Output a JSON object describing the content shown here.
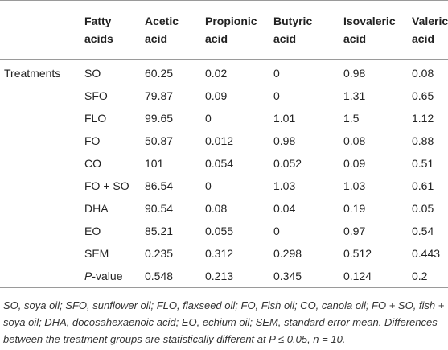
{
  "table": {
    "header": [
      "Fatty acids",
      "Acetic acid",
      "Propionic acid",
      "Butyric acid",
      "Isovaleric acid",
      "Valeric acid"
    ],
    "group_label": "Treatments",
    "rows": [
      {
        "label": "SO",
        "values": [
          60.25,
          0.02,
          0,
          0.98,
          0.08
        ]
      },
      {
        "label": "SFO",
        "values": [
          79.87,
          0.09,
          0,
          1.31,
          0.65
        ]
      },
      {
        "label": "FLO",
        "values": [
          99.65,
          0,
          1.01,
          1.5,
          1.12
        ]
      },
      {
        "label": "FO",
        "values": [
          50.87,
          0.012,
          0.98,
          0.08,
          0.88
        ]
      },
      {
        "label": "CO",
        "values": [
          101,
          0.054,
          0.052,
          0.09,
          0.51
        ]
      },
      {
        "label": "FO + SO",
        "values": [
          86.54,
          0,
          1.03,
          1.03,
          0.61
        ]
      },
      {
        "label": "DHA",
        "values": [
          90.54,
          0.08,
          0.04,
          0.19,
          0.05
        ]
      },
      {
        "label": "EO",
        "values": [
          85.21,
          0.055,
          0,
          0.97,
          0.54
        ]
      },
      {
        "label": "SEM",
        "values": [
          0.235,
          0.312,
          0.298,
          0.512,
          0.443
        ]
      },
      {
        "label_italic": "P",
        "label_rest": "-value",
        "values": [
          0.548,
          0.213,
          0.345,
          0.124,
          0.2
        ]
      }
    ]
  },
  "footnote": "SO, soya oil; SFO, sunflower oil; FLO, flaxseed oil; FO, Fish oil; CO, canola oil; FO + SO, fish + soya oil; DHA, docosahexaenoic acid; EO, echium oil; SEM, standard error mean. Differences between the treatment groups are statistically different at P ≤ 0.05, n = 10."
}
